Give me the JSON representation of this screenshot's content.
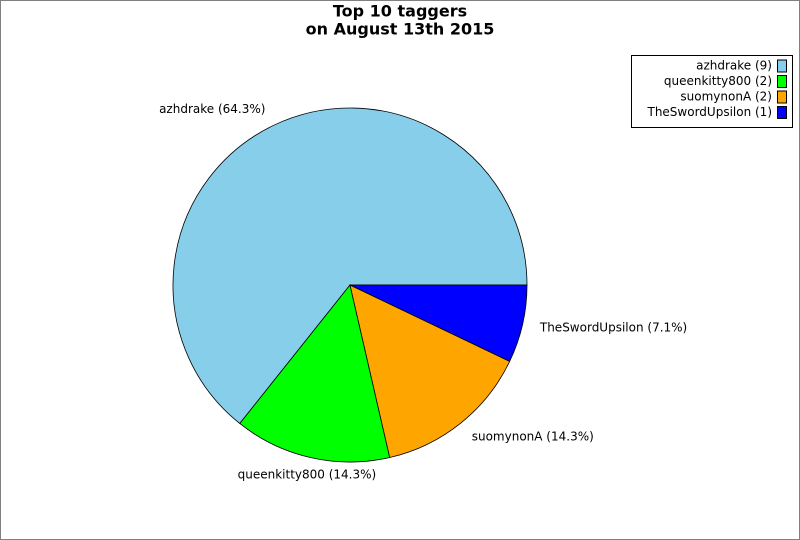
{
  "chart_data": {
    "type": "pie",
    "title": "Top 10 taggers",
    "subtitle": "on August 13th 2015",
    "values": [
      64.3,
      14.3,
      14.3,
      7.1
    ],
    "value_labels": [
      "azhdrake (64.3%)",
      "queenkitty800 (14.3%)",
      "suomynonA (14.3%)",
      "TheSwordUpsilon (7.1%)"
    ],
    "colors": [
      "#87ceeb",
      "#00ff00",
      "#ffa500",
      "#0000ff"
    ],
    "legend": {
      "position": "top-right",
      "labels": [
        "azhdrake (9)",
        "queenkitty800 (2)",
        "suomynonA (2)",
        "TheSwordUpsilon (1)"
      ],
      "counts": [
        9,
        2,
        2,
        1
      ]
    }
  }
}
